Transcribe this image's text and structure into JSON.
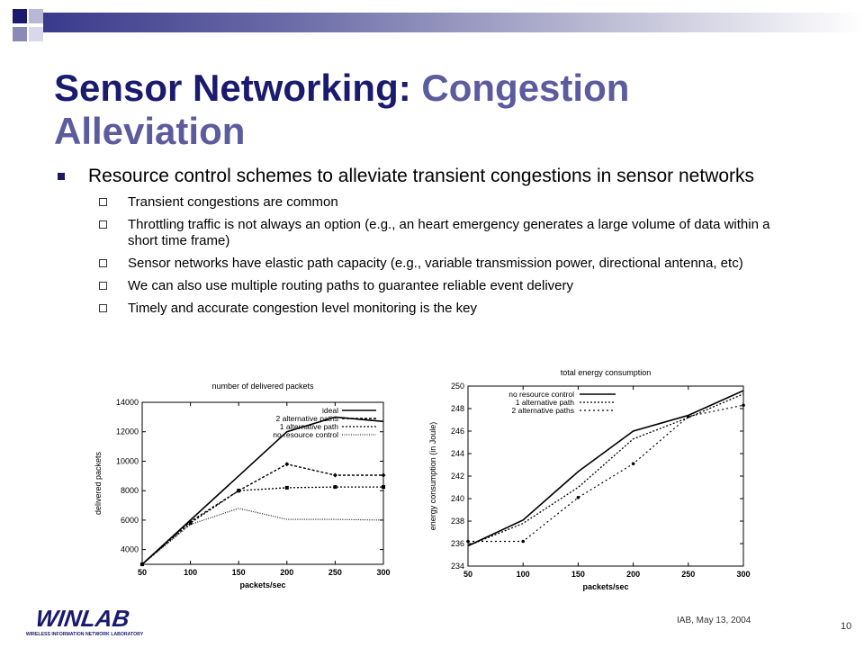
{
  "slide": {
    "title_part1": "Sensor Networking:",
    "title_part2": "Congestion Alleviation",
    "bullet_main": "Resource control schemes to alleviate transient congestions in sensor networks",
    "sub_bullets": [
      "Transient congestions are common",
      "Throttling traffic is not always an option (e.g., an heart emergency generates a large volume of data within a short time frame)",
      "Sensor networks have elastic path capacity (e.g., variable transmission power, directional antenna, etc)",
      "We can also use multiple routing paths to guarantee reliable event delivery",
      "Timely and accurate congestion level monitoring is the key"
    ],
    "footer": "IAB, May 13, 2004",
    "page_number": "10",
    "logo_text": "WINLAB",
    "logo_subtext": "WIRELESS INFORMATION NETWORK LABORATORY",
    "colors": {
      "title_dark": "#1a1a6e",
      "title_light": "#5b5b9e",
      "bar": "#3a3a8c"
    }
  },
  "chart_data": [
    {
      "type": "line",
      "title": "number of delivered packets",
      "xlabel": "packets/sec",
      "ylabel": "delivered packets",
      "x": [
        50,
        100,
        150,
        200,
        250,
        300
      ],
      "xlim": [
        50,
        300
      ],
      "ylim": [
        3000,
        14000
      ],
      "xticks": [
        "50",
        "100",
        "150",
        "200",
        "250",
        "300"
      ],
      "yticks": [
        "4000",
        "6000",
        "8000",
        "10000",
        "12000",
        "14000"
      ],
      "ytick_values": [
        4000,
        6000,
        8000,
        10000,
        12000,
        14000
      ],
      "legend": "top-right",
      "series": [
        {
          "name": "ideal",
          "values": [
            3000,
            6000,
            9000,
            12000,
            13000,
            12700
          ]
        },
        {
          "name": "2 alternative paths",
          "values": [
            3000,
            5900,
            8000,
            9800,
            9050,
            9050
          ]
        },
        {
          "name": "1 alternative path",
          "values": [
            3000,
            5800,
            8000,
            8200,
            8250,
            8250
          ]
        },
        {
          "name": "no resource control",
          "values": [
            3000,
            5700,
            6800,
            6050,
            6050,
            6000
          ]
        }
      ]
    },
    {
      "type": "line",
      "title": "total energy consumption",
      "xlabel": "packets/sec",
      "ylabel": "energy consumption (in Joule)",
      "x": [
        50,
        100,
        150,
        200,
        250,
        300
      ],
      "xlim": [
        50,
        300
      ],
      "ylim": [
        234,
        250
      ],
      "xticks": [
        "50",
        "100",
        "150",
        "200",
        "250",
        "300"
      ],
      "yticks": [
        "234",
        "236",
        "238",
        "240",
        "242",
        "244",
        "246",
        "248",
        "250"
      ],
      "ytick_values": [
        234,
        236,
        238,
        240,
        242,
        244,
        246,
        248,
        250
      ],
      "legend": "top-left",
      "series": [
        {
          "name": "no resource control",
          "values": [
            235.8,
            238.1,
            242.4,
            246.0,
            247.4,
            249.6
          ]
        },
        {
          "name": "1 alternative path",
          "values": [
            235.8,
            237.8,
            241.0,
            245.3,
            247.2,
            249.3
          ]
        },
        {
          "name": "2 alternative paths",
          "values": [
            236.2,
            236.2,
            240.1,
            243.1,
            247.3,
            248.3
          ]
        }
      ]
    }
  ]
}
